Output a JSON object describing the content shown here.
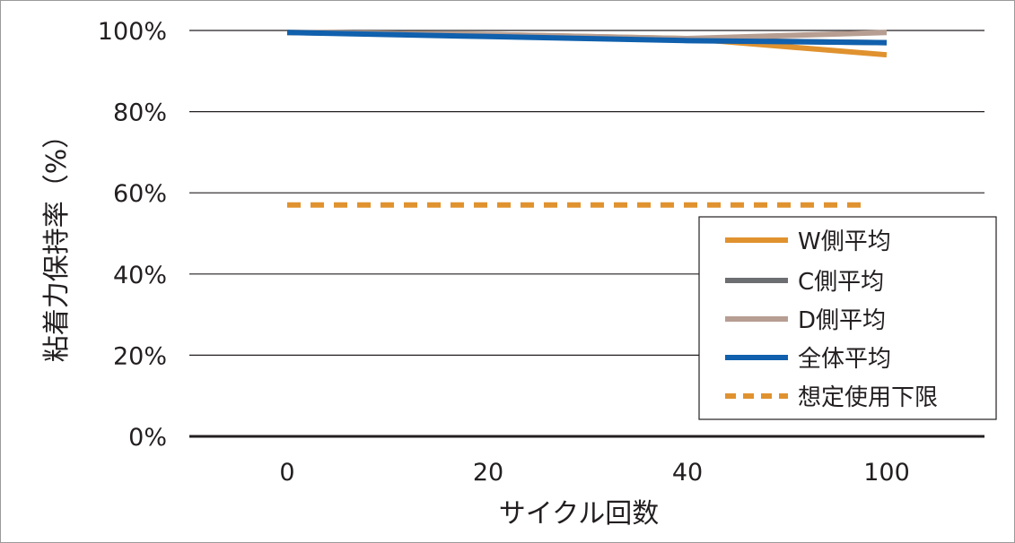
{
  "chart_data": {
    "type": "line",
    "xlabel": "サイクル回数",
    "ylabel": "粘着力保持率（%）",
    "categories": [
      "0",
      "20",
      "40",
      "100"
    ],
    "ylim": [
      0,
      100
    ],
    "y_ticks": [
      "0%",
      "20%",
      "40%",
      "60%",
      "80%",
      "100%"
    ],
    "y_tick_values": [
      0,
      20,
      40,
      60,
      80,
      100
    ],
    "grid": true,
    "legend_position": "bottom-right",
    "series": [
      {
        "name": "W側平均",
        "values": [
          99.5,
          99,
          98,
          94
        ],
        "color": "#e0922f",
        "dashed": false
      },
      {
        "name": "C側平均",
        "values": [
          99.5,
          98.8,
          97.6,
          97
        ],
        "color": "#6d6e71",
        "dashed": false
      },
      {
        "name": "D側平均",
        "values": [
          99.5,
          99,
          98,
          99.5
        ],
        "color": "#b79e92",
        "dashed": false
      },
      {
        "name": "全体平均",
        "values": [
          99.5,
          98.5,
          97.5,
          97
        ],
        "color": "#1060ad",
        "dashed": false
      },
      {
        "name": "想定使用下限",
        "values": [
          57,
          57,
          57,
          57
        ],
        "color": "#e0922f",
        "dashed": true
      }
    ]
  }
}
